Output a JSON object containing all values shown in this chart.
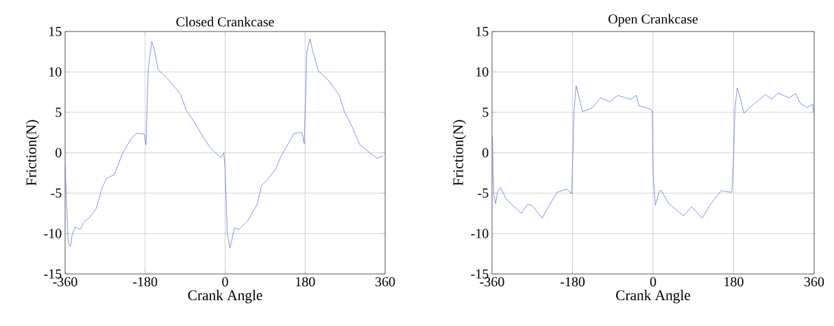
{
  "chart_data": [
    {
      "type": "line",
      "title": "Closed Crankcase",
      "xlabel": "Crank Angle",
      "ylabel": "Friction(N)",
      "color": "#3f5fd8",
      "grid": true,
      "xlim": [
        -360,
        360
      ],
      "ylim": [
        -15,
        15
      ],
      "xticks": [
        -360,
        -180,
        0,
        180,
        360
      ],
      "yticks": [
        -15,
        -10,
        -5,
        0,
        5,
        10,
        15
      ],
      "x": [
        -360,
        -353,
        -348,
        -344,
        -337,
        -326,
        -318,
        -305,
        -290,
        -277,
        -267,
        -249,
        -231,
        -213,
        -200,
        -182,
        -178,
        -173,
        -165,
        -159,
        -151,
        -125,
        -100,
        -87,
        -69,
        -48,
        -33,
        -10,
        -3,
        0,
        5,
        11,
        21,
        31,
        51,
        72,
        82,
        95,
        113,
        126,
        144,
        155,
        173,
        178,
        184,
        191,
        197,
        210,
        233,
        256,
        269,
        285,
        303,
        316,
        342,
        355
      ],
      "values": [
        -1.6,
        -11.2,
        -11.6,
        -10.1,
        -9.2,
        -9.5,
        -8.6,
        -8.0,
        -6.9,
        -4.4,
        -3.2,
        -2.7,
        -0.1,
        1.6,
        2.4,
        2.3,
        1.0,
        10.3,
        13.8,
        12.7,
        10.3,
        8.9,
        7.2,
        5.2,
        3.8,
        1.8,
        0.6,
        -0.6,
        0.0,
        -2.1,
        -10.1,
        -11.8,
        -9.3,
        -9.5,
        -8.4,
        -6.4,
        -4.1,
        -3.3,
        -2.1,
        -0.4,
        1.3,
        2.4,
        2.5,
        1.1,
        12.6,
        14.1,
        12.6,
        10.1,
        8.9,
        7.2,
        5.0,
        3.3,
        1.0,
        0.4,
        -0.7,
        -0.4
      ]
    },
    {
      "type": "line",
      "title": "Open Crankcase",
      "xlabel": "Crank Angle",
      "ylabel": "Friction(N)",
      "color": "#3f5fd8",
      "grid": true,
      "xlim": [
        -360,
        360
      ],
      "ylim": [
        -15,
        15
      ],
      "xticks": [
        -360,
        -180,
        0,
        180,
        360
      ],
      "yticks": [
        -15,
        -10,
        -5,
        0,
        5,
        10,
        15
      ],
      "x": [
        -359,
        -358,
        -356,
        -352,
        -348,
        -341,
        -329,
        -312,
        -294,
        -281,
        -271,
        -248,
        -236,
        -215,
        -193,
        -182,
        -179,
        -177,
        -172,
        -167,
        -158,
        -137,
        -117,
        -97,
        -79,
        -51,
        -37,
        -32,
        -11,
        -2,
        0,
        5,
        14,
        19,
        35,
        68,
        86,
        110,
        129,
        152,
        176,
        180,
        183,
        188,
        193,
        203,
        223,
        251,
        266,
        279,
        304,
        319,
        329,
        344,
        357,
        359
      ],
      "values": [
        2.0,
        -2.0,
        -5.2,
        -6.3,
        -4.9,
        -4.3,
        -5.7,
        -6.6,
        -7.5,
        -6.4,
        -6.5,
        -8.1,
        -6.9,
        -4.9,
        -4.5,
        -5.1,
        0.3,
        5.2,
        8.3,
        7.2,
        5.1,
        5.5,
        6.8,
        6.3,
        7.1,
        6.6,
        7.1,
        5.8,
        5.5,
        5.2,
        -2.6,
        -6.5,
        -4.7,
        -4.7,
        -6.3,
        -7.8,
        -6.7,
        -8.1,
        -6.3,
        -4.7,
        -4.9,
        -0.3,
        5.5,
        8.0,
        7.2,
        4.9,
        5.9,
        7.2,
        6.6,
        7.4,
        6.8,
        7.3,
        6.1,
        5.6,
        6.0,
        5.0
      ]
    }
  ]
}
